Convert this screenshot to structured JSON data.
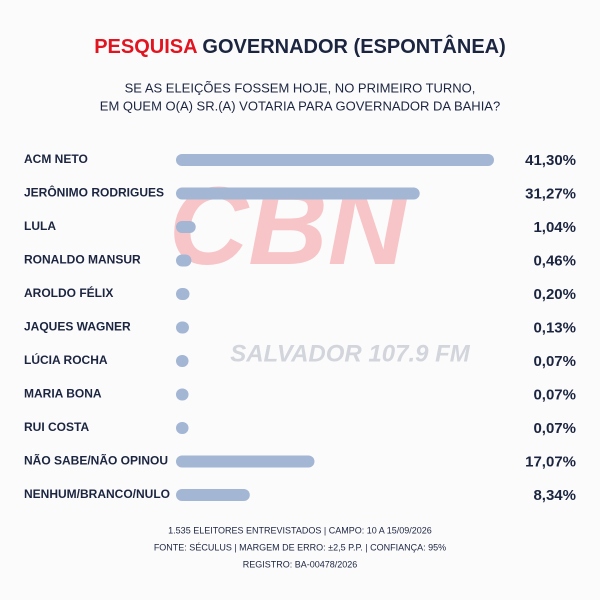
{
  "chart_data": {
    "type": "bar",
    "orientation": "horizontal",
    "title_highlight": "PESQUISA",
    "title": "GOVERNADOR (ESPONTÂNEA)",
    "subtitle": [
      "SE AS ELEIÇÕES FOSSEM HOJE, NO PRIMEIRO TURNO,",
      "EM QUEM O(A) SR.(A) VOTARIA PARA GOVERNADOR DA BAHIA?"
    ],
    "categories": [
      "ACM NETO",
      "JERÔNIMO RODRIGUES",
      "LULA",
      "RONALDO MANSUR",
      "AROLDO FÉLIX",
      "JAQUES WAGNER",
      "LÚCIA ROCHA",
      "MARIA BONA",
      "RUI COSTA",
      "NÃO SABE/NÃO OPINOU",
      "NENHUM/BRANCO/NULO"
    ],
    "values": [
      41.3,
      31.27,
      1.04,
      0.46,
      0.2,
      0.13,
      0.07,
      0.07,
      0.07,
      17.07,
      8.34
    ],
    "value_labels": [
      "41,30%",
      "31,27%",
      "1,04%",
      "0,46%",
      "0,20%",
      "0,13%",
      "0,07%",
      "0,07%",
      "0,07%",
      "17,07%",
      "8,34%"
    ],
    "color": "#a3b6d3",
    "watermark": [
      "CBN",
      "SALVADOR 107.9 FM"
    ],
    "footer": [
      "1.535 ELEITORES ENTREVISTADOS | CAMPO: 10 A 15/09/2026",
      "FONTE: SÉCULUS | MARGEM DE ERRO: ±2,5 P.P. | CONFIANÇA: 95%",
      "REGISTRO: BA-00478/2026"
    ]
  }
}
